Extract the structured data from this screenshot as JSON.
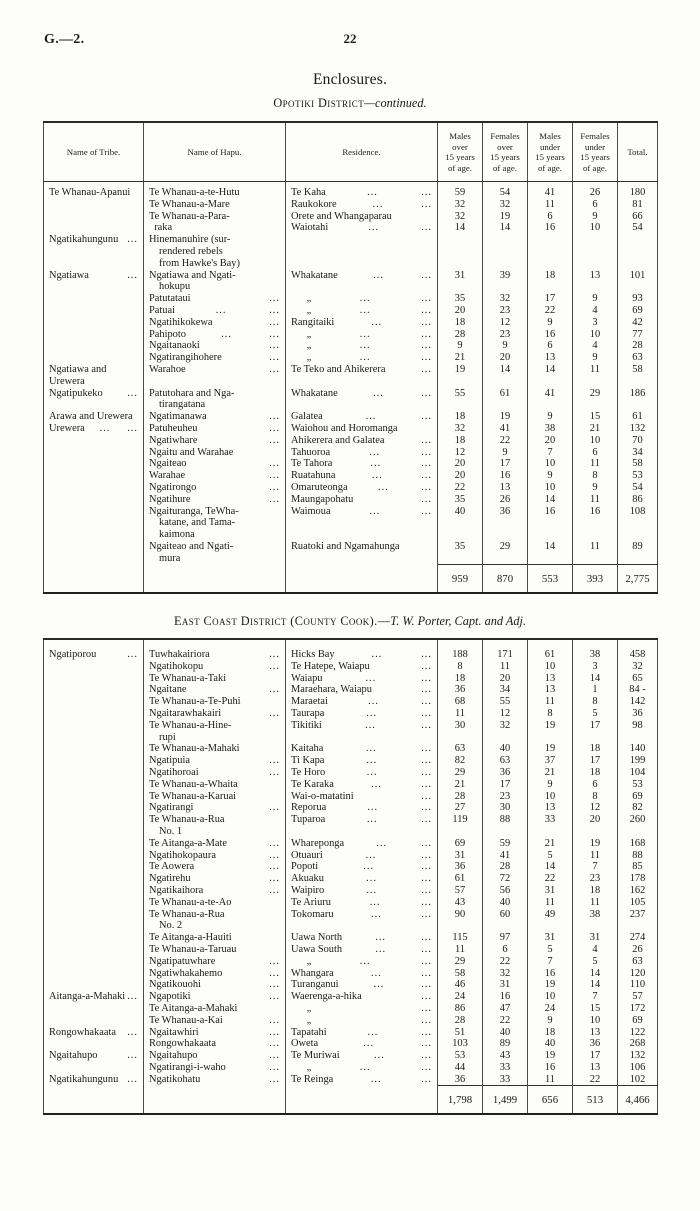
{
  "header": {
    "doc_ref": "G.—2.",
    "page_number": "22",
    "enclosures_title": "Enclosures."
  },
  "opotiki": {
    "title_caps": "Opotiki District",
    "title_italic": "—continued.",
    "columns": [
      "Name of Tribe.",
      "Name of Hapu.",
      "Residence.",
      "Males\nover\n15 years\nof age.",
      "Females\nover\n15 years\nof age.",
      "Males\nunder\n15 years\nof age.",
      "Females\nunder\n15 years\nof age.",
      "Total."
    ],
    "rows": [
      {
        "tribe": "Te Whanau-Apanui",
        "hapu": "Te Whanau-a-te-Hutu",
        "res": "Te Kaha ... ...",
        "m1": "59",
        "f1": "54",
        "m2": "41",
        "f2": "26",
        "tot": "180"
      },
      {
        "tribe": "",
        "hapu": "Te Whanau-a-Mare",
        "res": "Raukokore ... ...",
        "m1": "32",
        "f1": "32",
        "m2": "11",
        "f2": "6",
        "tot": "81"
      },
      {
        "tribe": "",
        "hapu": "Te Whanau-a-Para-",
        "res": "Orete and Whangaparau",
        "m1": "32",
        "f1": "19",
        "m2": "6",
        "f2": "9",
        "tot": "66"
      },
      {
        "tribe": "",
        "hapu": "  raka",
        "res": "Waiotahi ... ...",
        "m1": "14",
        "f1": "14",
        "m2": "16",
        "f2": "10",
        "tot": "54"
      },
      {
        "tribe": "Ngatikahungunu ...",
        "hapu": "Hinemanuhire (sur-\nrendered rebels\nfrom Hawke's Bay)",
        "res": "",
        "m1": "",
        "f1": "",
        "m2": "",
        "f2": "",
        "tot": ""
      },
      {
        "tribe": "Ngatiawa ...",
        "hapu": "Ngatiawa and Ngati-\nhokupu",
        "res": "Whakatane ... ...",
        "m1": "31",
        "f1": "39",
        "m2": "18",
        "f2": "13",
        "tot": "101"
      },
      {
        "tribe": "",
        "hapu": "Patutataui ...",
        "res": "      „ ... ...",
        "m1": "35",
        "f1": "32",
        "m2": "17",
        "f2": "9",
        "tot": "93"
      },
      {
        "tribe": "",
        "hapu": "Patuai ... ...",
        "res": "      „ ... ...",
        "m1": "20",
        "f1": "23",
        "m2": "22",
        "f2": "4",
        "tot": "69"
      },
      {
        "tribe": "",
        "hapu": "Ngatihikokewa ...",
        "res": "Rangitaiki ... ...",
        "m1": "18",
        "f1": "12",
        "m2": "9",
        "f2": "3",
        "tot": "42"
      },
      {
        "tribe": "",
        "hapu": "Pahipoto ... ...",
        "res": "      „ ... ...",
        "m1": "28",
        "f1": "23",
        "m2": "16",
        "f2": "10",
        "tot": "77"
      },
      {
        "tribe": "",
        "hapu": "Ngaitanaoki ...",
        "res": "      „ ... ...",
        "m1": "9",
        "f1": "9",
        "m2": "6",
        "f2": "4",
        "tot": "28"
      },
      {
        "tribe": "",
        "hapu": "Ngatirangihohere ...",
        "res": "      „ ... ...",
        "m1": "21",
        "f1": "20",
        "m2": "13",
        "f2": "9",
        "tot": "63"
      },
      {
        "tribe": "Ngatiawa and Urewera",
        "hapu": "Warahoe ...",
        "res": "Te Teko and Ahikerera ...",
        "m1": "19",
        "f1": "14",
        "m2": "14",
        "f2": "11",
        "tot": "58"
      },
      {
        "tribe": "Ngatipukeko ...",
        "hapu": "Patutohara and Nga-\ntirangatana",
        "res": "Whakatane ... ...",
        "m1": "55",
        "f1": "61",
        "m2": "41",
        "f2": "29",
        "tot": "186"
      },
      {
        "tribe": "Arawa and Urewera",
        "hapu": "Ngatimanawa ...",
        "res": "Galatea ... ...",
        "m1": "18",
        "f1": "19",
        "m2": "9",
        "f2": "15",
        "tot": "61"
      },
      {
        "tribe": "Urewera ... ...",
        "hapu": "Patuheuheu ...",
        "res": "Waiohou and Horomanga",
        "m1": "32",
        "f1": "41",
        "m2": "38",
        "f2": "21",
        "tot": "132"
      },
      {
        "tribe": "",
        "hapu": "Ngatiwhare ...",
        "res": "Ahikerera and Galatea ...",
        "m1": "18",
        "f1": "22",
        "m2": "20",
        "f2": "10",
        "tot": "70"
      },
      {
        "tribe": "",
        "hapu": "Ngaitu and Warahae",
        "res": "Tahuoroa ... ...",
        "m1": "12",
        "f1": "9",
        "m2": "7",
        "f2": "6",
        "tot": "34"
      },
      {
        "tribe": "",
        "hapu": "Ngaiteao ...",
        "res": "Te Tahora ... ...",
        "m1": "20",
        "f1": "17",
        "m2": "10",
        "f2": "11",
        "tot": "58"
      },
      {
        "tribe": "",
        "hapu": "Warahae ...",
        "res": "Ruatahuna ... ...",
        "m1": "20",
        "f1": "16",
        "m2": "9",
        "f2": "8",
        "tot": "53"
      },
      {
        "tribe": "",
        "hapu": "Ngatirongo ...",
        "res": "Omaruteonga ... ...",
        "m1": "22",
        "f1": "13",
        "m2": "10",
        "f2": "9",
        "tot": "54"
      },
      {
        "tribe": "",
        "hapu": "Ngatihure ...",
        "res": "Maungapohatu ...",
        "m1": "35",
        "f1": "26",
        "m2": "14",
        "f2": "11",
        "tot": "86"
      },
      {
        "tribe": "",
        "hapu": "Ngaituranga, TeWha-\nkatane, and Tama-\nkaimona",
        "res": "Waimoua ... ...",
        "m1": "40",
        "f1": "36",
        "m2": "16",
        "f2": "16",
        "tot": "108"
      },
      {
        "tribe": "",
        "hapu": "Ngaiteao and Ngati-\nmura",
        "res": "Ruatoki and Ngamahunga",
        "m1": "35",
        "f1": "29",
        "m2": "14",
        "f2": "11",
        "tot": "89"
      }
    ],
    "totals": [
      "959",
      "870",
      "553",
      "393",
      "2,775"
    ]
  },
  "eastcoast": {
    "title_caps": "East Coast District (County Cook).—",
    "title_italic": "T. W. Porter, Capt. and Adj.",
    "rows": [
      {
        "tribe": "Ngatiporou ...",
        "hapu": "Tuwhakairiora ...",
        "res": "Hicks Bay ... ...",
        "m1": "188",
        "f1": "171",
        "m2": "61",
        "f2": "38",
        "tot": "458"
      },
      {
        "tribe": "",
        "hapu": "Ngatihokopu ...",
        "res": "Te Hatepe, Waiapu ...",
        "m1": "8",
        "f1": "11",
        "m2": "10",
        "f2": "3",
        "tot": "32"
      },
      {
        "tribe": "",
        "hapu": "Te Whanau-a-Taki",
        "res": "Waiapu ... ...",
        "m1": "18",
        "f1": "20",
        "m2": "13",
        "f2": "14",
        "tot": "65"
      },
      {
        "tribe": "",
        "hapu": "Ngaitane ...",
        "res": "Maraehara, Waiapu ...",
        "m1": "36",
        "f1": "34",
        "m2": "13",
        "f2": "1",
        "tot": "84 -"
      },
      {
        "tribe": "",
        "hapu": "Te Whanau-a-Te-Puhi",
        "res": "Maraetai ... ...",
        "m1": "68",
        "f1": "55",
        "m2": "11",
        "f2": "8",
        "tot": "142"
      },
      {
        "tribe": "",
        "hapu": "Ngaitarawhakairi ...",
        "res": "Taurapa ... ...",
        "m1": "11",
        "f1": "12",
        "m2": "8",
        "f2": "5",
        "tot": "36"
      },
      {
        "tribe": "",
        "hapu": "Te Whanau-a-Hine-\nrupi",
        "res": "Tikitiki ... ...",
        "m1": "30",
        "f1": "32",
        "m2": "19",
        "f2": "17",
        "tot": "98"
      },
      {
        "tribe": "",
        "hapu": "Te Whanau-a-Mahaki",
        "res": "Kaitaha ... ...",
        "m1": "63",
        "f1": "40",
        "m2": "19",
        "f2": "18",
        "tot": "140"
      },
      {
        "tribe": "",
        "hapu": "Ngatipuia ...",
        "res": "Ti Kapa ... ...",
        "m1": "82",
        "f1": "63",
        "m2": "37",
        "f2": "17",
        "tot": "199"
      },
      {
        "tribe": "",
        "hapu": "Ngatihoroai ...",
        "res": "Te Horo ... ...",
        "m1": "29",
        "f1": "36",
        "m2": "21",
        "f2": "18",
        "tot": "104"
      },
      {
        "tribe": "",
        "hapu": "Te Whanau-a-Whaita",
        "res": "Te Karaka ... ...",
        "m1": "21",
        "f1": "17",
        "m2": "9",
        "f2": "6",
        "tot": "53"
      },
      {
        "tribe": "",
        "hapu": "Te Whanau-a-Karuai",
        "res": "Wai-o-matatini ...",
        "m1": "28",
        "f1": "23",
        "m2": "10",
        "f2": "8",
        "tot": "69"
      },
      {
        "tribe": "",
        "hapu": "Ngatirangi ...",
        "res": "Reporua ... ...",
        "m1": "27",
        "f1": "30",
        "m2": "13",
        "f2": "12",
        "tot": "82"
      },
      {
        "tribe": "",
        "hapu": "Te Whanau-a-Rua\nNo. 1",
        "res": "Tuparoa ... ...",
        "m1": "119",
        "f1": "88",
        "m2": "33",
        "f2": "20",
        "tot": "260"
      },
      {
        "tribe": "",
        "hapu": "Te Aitanga-a-Mate...",
        "res": "Whareponga ... ...",
        "m1": "69",
        "f1": "59",
        "m2": "21",
        "f2": "19",
        "tot": "168"
      },
      {
        "tribe": "",
        "hapu": "Ngatihokopaura ...",
        "res": "Otuauri ... ...",
        "m1": "31",
        "f1": "41",
        "m2": "5",
        "f2": "11",
        "tot": "88"
      },
      {
        "tribe": "",
        "hapu": "Te Aowera ...",
        "res": "Popoti ... ...",
        "m1": "36",
        "f1": "28",
        "m2": "14",
        "f2": "7",
        "tot": "85"
      },
      {
        "tribe": "",
        "hapu": "Ngatirehu ...",
        "res": "Akuaku ... ...",
        "m1": "61",
        "f1": "72",
        "m2": "22",
        "f2": "23",
        "tot": "178"
      },
      {
        "tribe": "",
        "hapu": "Ngatikaihora ...",
        "res": "Waipiro ... ...",
        "m1": "57",
        "f1": "56",
        "m2": "31",
        "f2": "18",
        "tot": "162"
      },
      {
        "tribe": "",
        "hapu": "Te Whanau-a-te-Ao",
        "res": "Te Ariuru ... ...",
        "m1": "43",
        "f1": "40",
        "m2": "11",
        "f2": "11",
        "tot": "105"
      },
      {
        "tribe": "",
        "hapu": "Te Whanau-a-Rua\nNo. 2",
        "res": "Tokomaru ... ...",
        "m1": "90",
        "f1": "60",
        "m2": "49",
        "f2": "38",
        "tot": "237"
      },
      {
        "tribe": "",
        "hapu": "Te Aitanga-a-Hauiti",
        "res": "Uawa North ... ...",
        "m1": "115",
        "f1": "97",
        "m2": "31",
        "f2": "31",
        "tot": "274"
      },
      {
        "tribe": "",
        "hapu": "Te Whanau-a-Taruau",
        "res": "Uawa South ... ...",
        "m1": "11",
        "f1": "6",
        "m2": "5",
        "f2": "4",
        "tot": "26"
      },
      {
        "tribe": "",
        "hapu": "Ngatipatuwhare ...",
        "res": "      „ ... ...",
        "m1": "29",
        "f1": "22",
        "m2": "7",
        "f2": "5",
        "tot": "63"
      },
      {
        "tribe": "",
        "hapu": "Ngatiwhakahemo ...",
        "res": "Whangara ... ...",
        "m1": "58",
        "f1": "32",
        "m2": "16",
        "f2": "14",
        "tot": "120"
      },
      {
        "tribe": "",
        "hapu": "Ngatikouohi ...",
        "res": "Turanganui ... ...",
        "m1": "46",
        "f1": "31",
        "m2": "19",
        "f2": "14",
        "tot": "110"
      },
      {
        "tribe": "Aitanga-a-Mahaki ...",
        "hapu": "Ngapotiki ...",
        "res": "Waerenga-a-hika ...",
        "m1": "24",
        "f1": "16",
        "m2": "10",
        "f2": "7",
        "tot": "57"
      },
      {
        "tribe": "",
        "hapu": "Te Aitanga-a-Mahaki",
        "res": "      „ ...",
        "m1": "86",
        "f1": "47",
        "m2": "24",
        "f2": "15",
        "tot": "172"
      },
      {
        "tribe": "",
        "hapu": "Te Whanau-a-Kai ...",
        "res": "      „ ...",
        "m1": "28",
        "f1": "22",
        "m2": "9",
        "f2": "10",
        "tot": "69"
      },
      {
        "tribe": "Rongowhakaata ...",
        "hapu": "Ngaitawhiri ...",
        "res": "Tapatahi ... ...",
        "m1": "51",
        "f1": "40",
        "m2": "18",
        "f2": "13",
        "tot": "122"
      },
      {
        "tribe": "",
        "hapu": "Rongowhakaata ...",
        "res": "Oweta ... ...",
        "m1": "103",
        "f1": "89",
        "m2": "40",
        "f2": "36",
        "tot": "268"
      },
      {
        "tribe": "Ngaitahupo ...",
        "hapu": "Ngaitahupo ...",
        "res": "Te Muriwai ... ...",
        "m1": "53",
        "f1": "43",
        "m2": "19",
        "f2": "17",
        "tot": "132"
      },
      {
        "tribe": "",
        "hapu": "Ngatirangi-i-waho ...",
        "res": "      „ ... ...",
        "m1": "44",
        "f1": "33",
        "m2": "16",
        "f2": "13",
        "tot": "106"
      },
      {
        "tribe": "Ngatikahungunu ...",
        "hapu": "Ngatikohatu ...",
        "res": "Te Reinga ... ...",
        "m1": "36",
        "f1": "33",
        "m2": "11",
        "f2": "22",
        "tot": "102"
      }
    ],
    "totals": [
      "1,798",
      "1,499",
      "656",
      "513",
      "4,466"
    ]
  }
}
